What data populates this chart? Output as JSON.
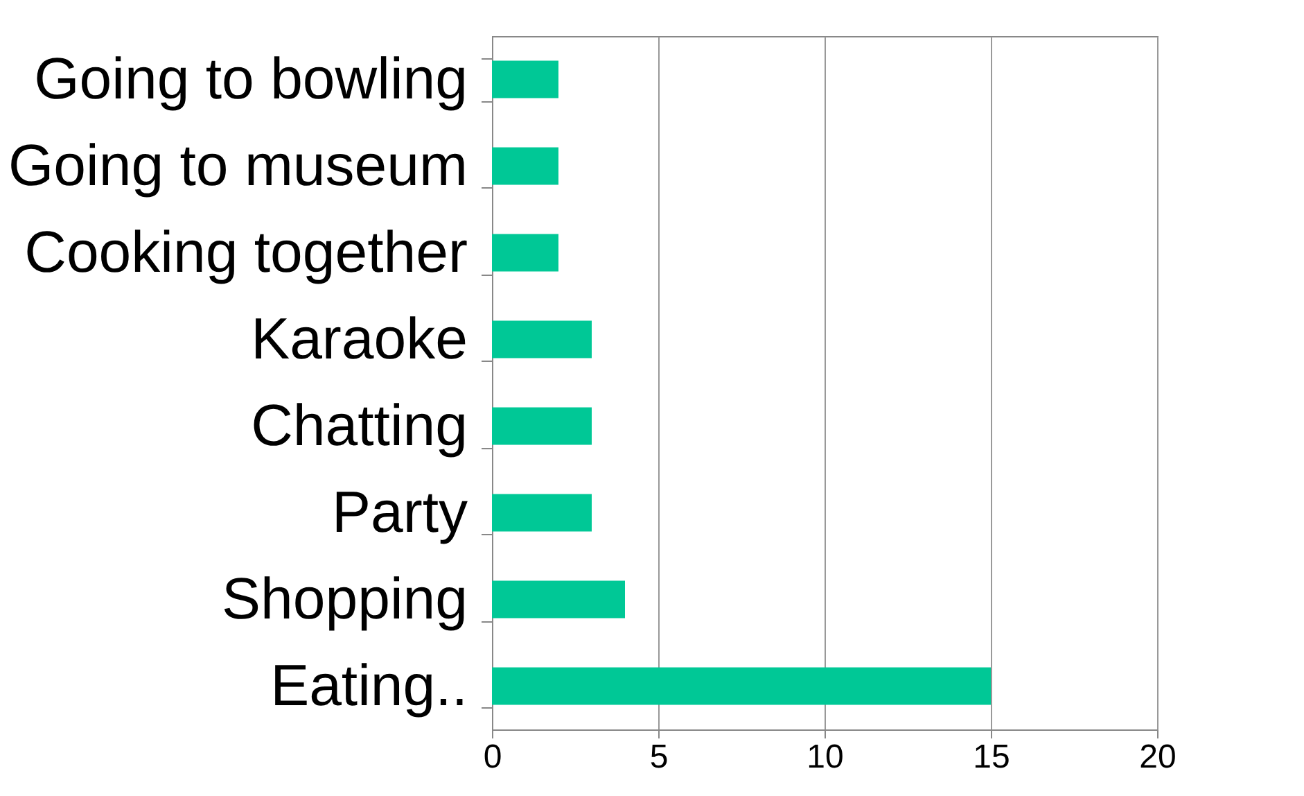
{
  "chart_data": {
    "type": "bar",
    "orientation": "horizontal",
    "categories": [
      "Going to bowling",
      "Going to museum",
      "Cooking together",
      "Karaoke",
      "Chatting",
      "Party",
      "Shopping",
      "Eating.."
    ],
    "values": [
      2,
      2,
      2,
      3,
      3,
      3,
      4,
      15
    ],
    "color": "#00c896",
    "xlim": [
      0,
      20
    ],
    "xticks": [
      0,
      5,
      10,
      15,
      20
    ],
    "grid": "x"
  }
}
